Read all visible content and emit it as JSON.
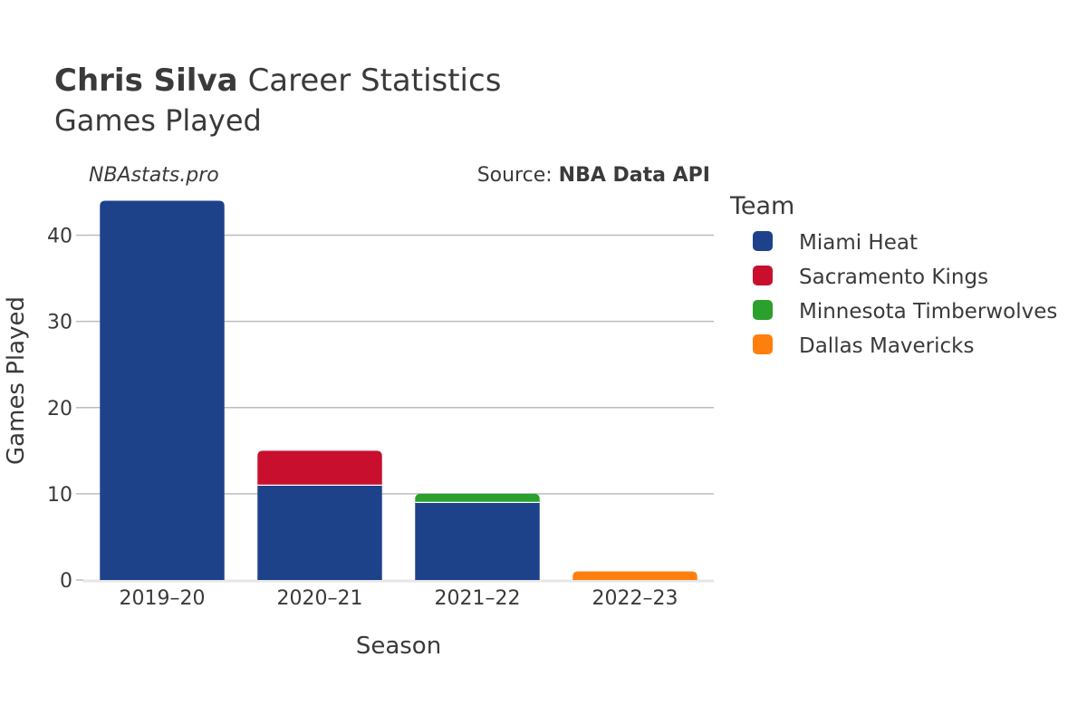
{
  "header": {
    "player_name": "Chris Silva",
    "title_rest": "Career Statistics",
    "subtitle": "Games Played"
  },
  "watermark": "NBAstats.pro",
  "source": {
    "prefix": "Source: ",
    "name": "NBA Data API"
  },
  "chart_data": {
    "type": "bar",
    "stacked": true,
    "categories": [
      "2019–20",
      "2020–21",
      "2021–22",
      "2022–23"
    ],
    "series": [
      {
        "name": "Miami Heat",
        "color": "#1d428a",
        "values": [
          44,
          11,
          9,
          0
        ]
      },
      {
        "name": "Sacramento Kings",
        "color": "#c8102e",
        "values": [
          0,
          4,
          0,
          0
        ]
      },
      {
        "name": "Minnesota Timberwolves",
        "color": "#2ca02c",
        "values": [
          0,
          0,
          1,
          0
        ]
      },
      {
        "name": "Dallas Mavericks",
        "color": "#ff7f0e",
        "values": [
          0,
          0,
          0,
          1
        ]
      }
    ],
    "xlabel": "Season",
    "ylabel": "Games Played",
    "ylim": [
      0,
      45
    ],
    "yticks": [
      0,
      10,
      20,
      30,
      40
    ],
    "grid": true,
    "legend": {
      "title": "Team",
      "placement": "right"
    }
  }
}
